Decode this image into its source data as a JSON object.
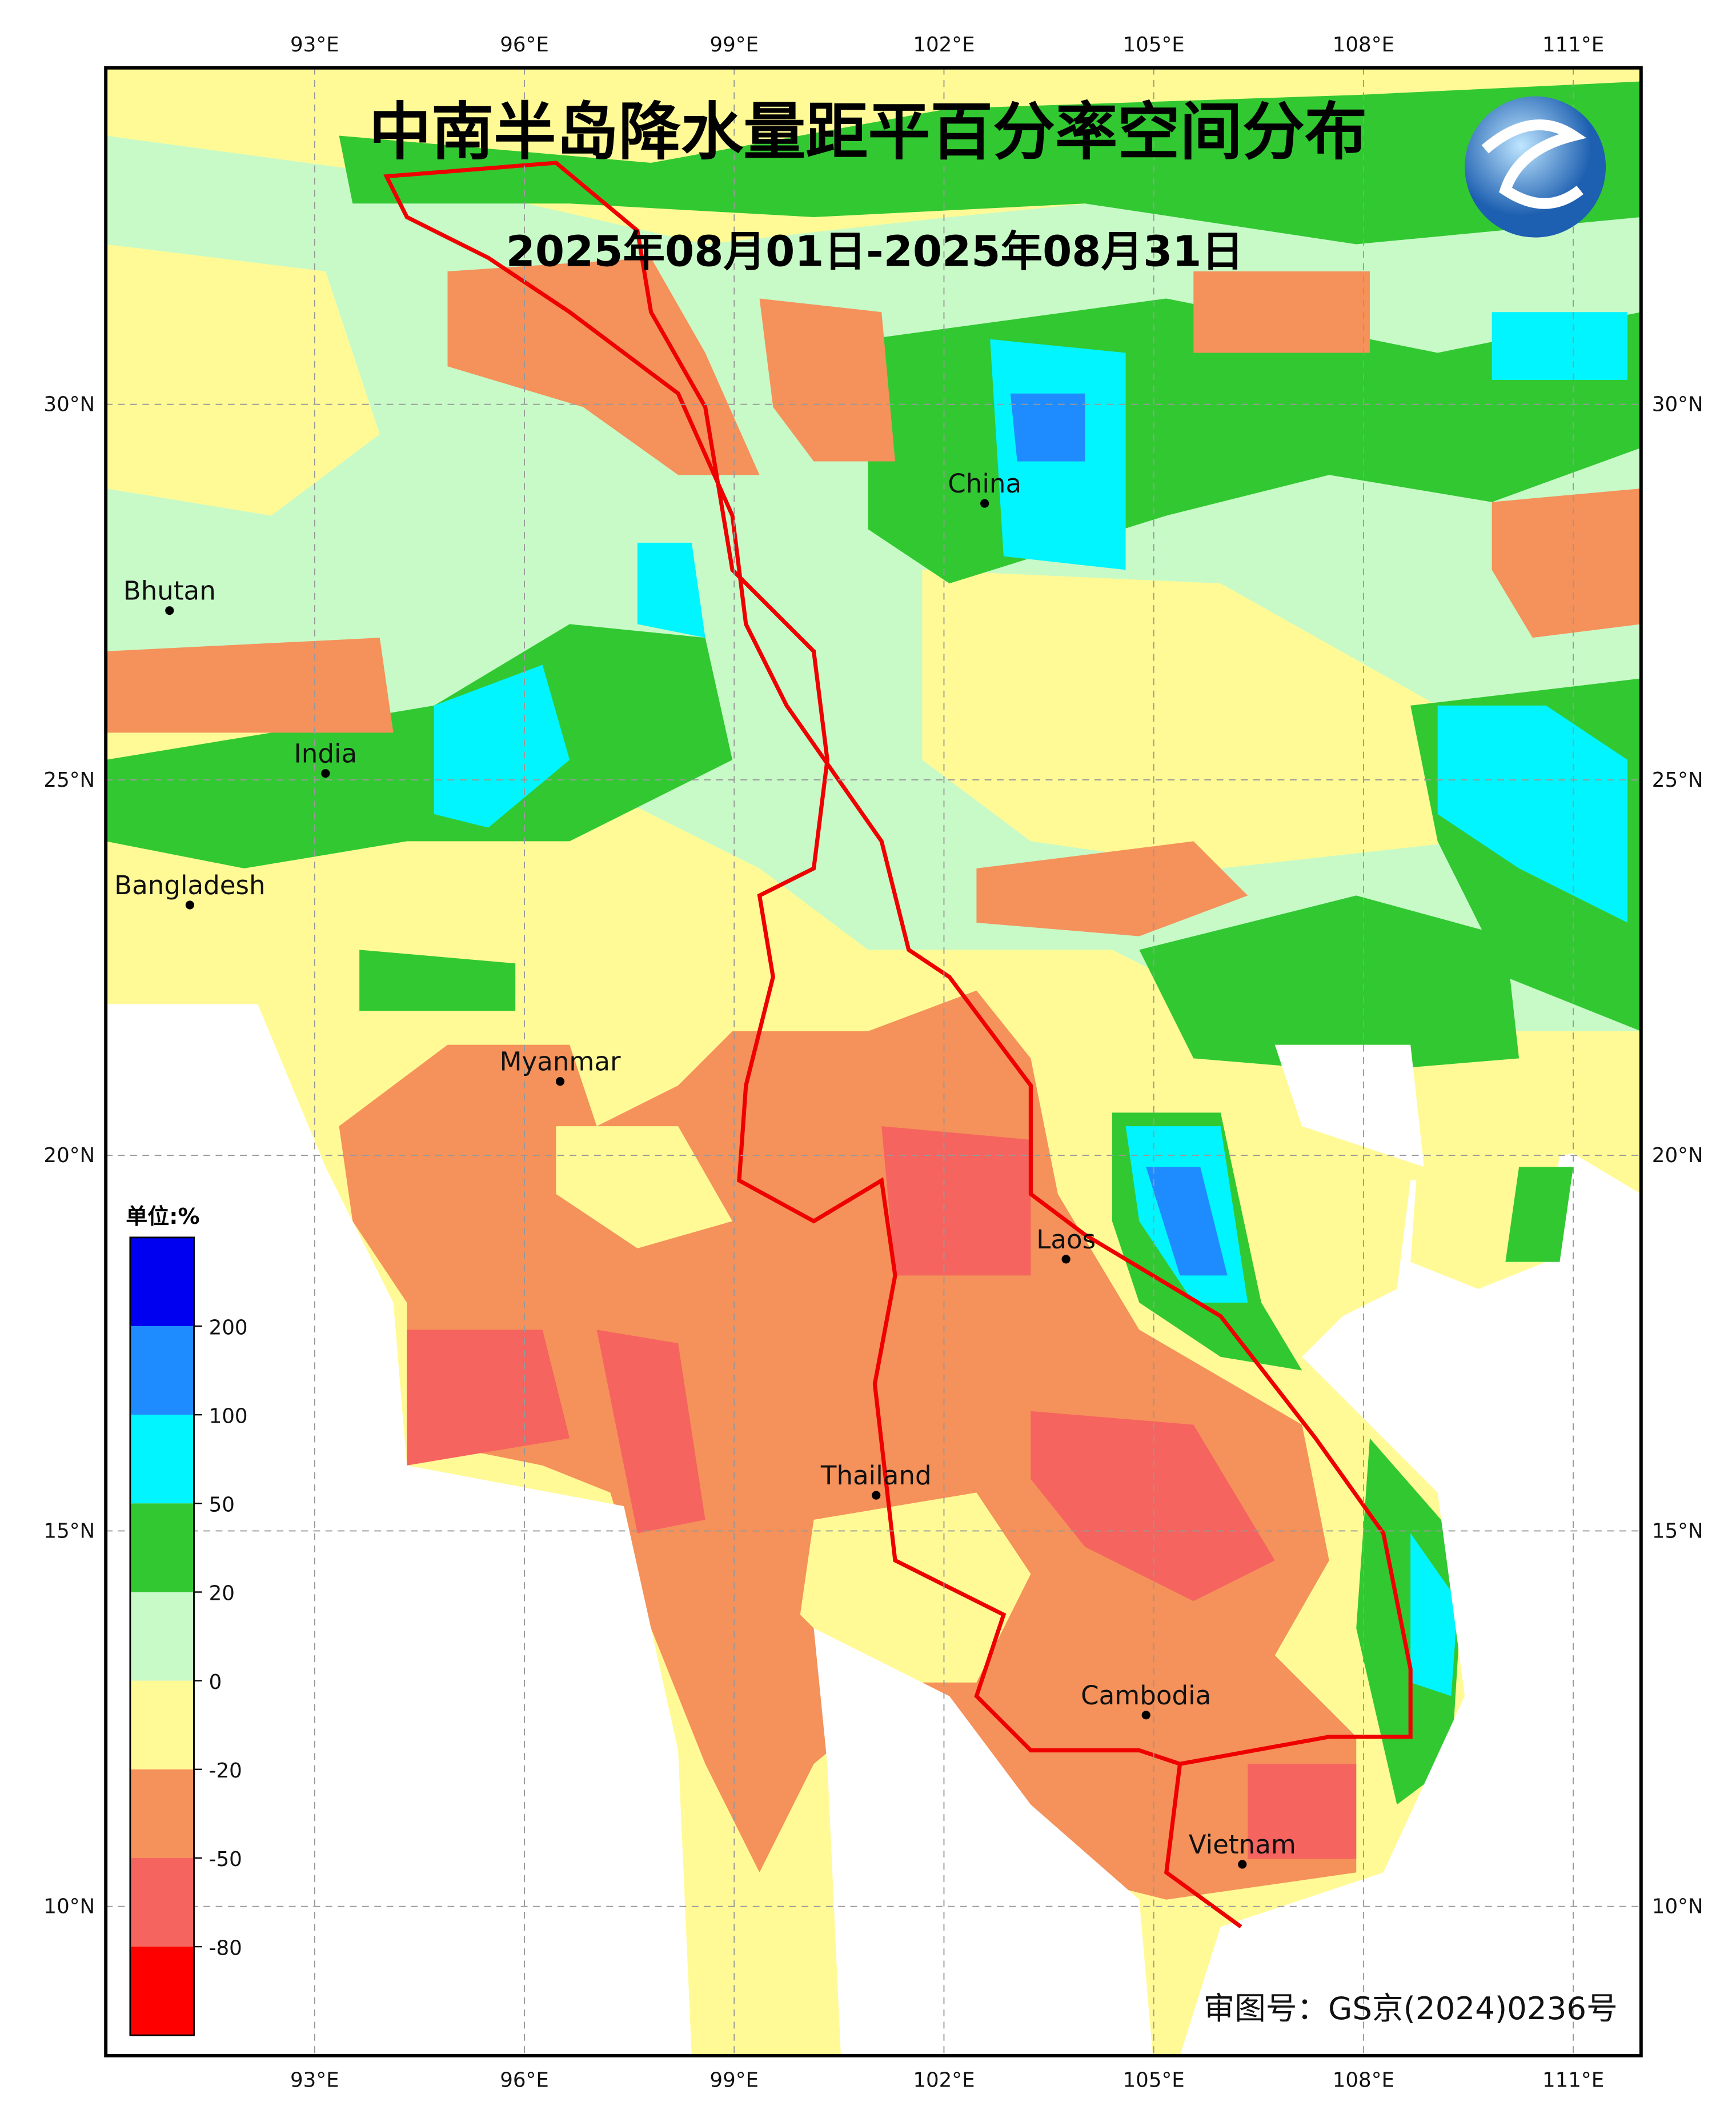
{
  "title": "中南半岛降水量距平百分率空间分布",
  "subtitle": "2025年08月01日-2025年08月31日",
  "lon_labels": [
    "93°E",
    "96°E",
    "99°E",
    "102°E",
    "105°E",
    "108°E",
    "111°E"
  ],
  "lat_labels": [
    "30°N",
    "25°N",
    "20°N",
    "15°N",
    "10°N"
  ],
  "places": [
    {
      "name": "China"
    },
    {
      "name": "Bhutan"
    },
    {
      "name": "India"
    },
    {
      "name": "Bangladesh"
    },
    {
      "name": "Myanmar"
    },
    {
      "name": "Laos"
    },
    {
      "name": "Thailand"
    },
    {
      "name": "Cambodia"
    },
    {
      "name": "Vietnam"
    }
  ],
  "legend": {
    "unit": "单位:%",
    "colors": [
      "#0000f0",
      "#1e8cff",
      "#00f5ff",
      "#32c832",
      "#c8fac8",
      "#fffa96",
      "#f5915a",
      "#f5645f",
      "#ff0000"
    ],
    "labels": [
      "200",
      "100",
      "50",
      "20",
      "0",
      "-20",
      "-50",
      "-80"
    ]
  },
  "approval": "审图号：GS京(2024)0236号"
}
